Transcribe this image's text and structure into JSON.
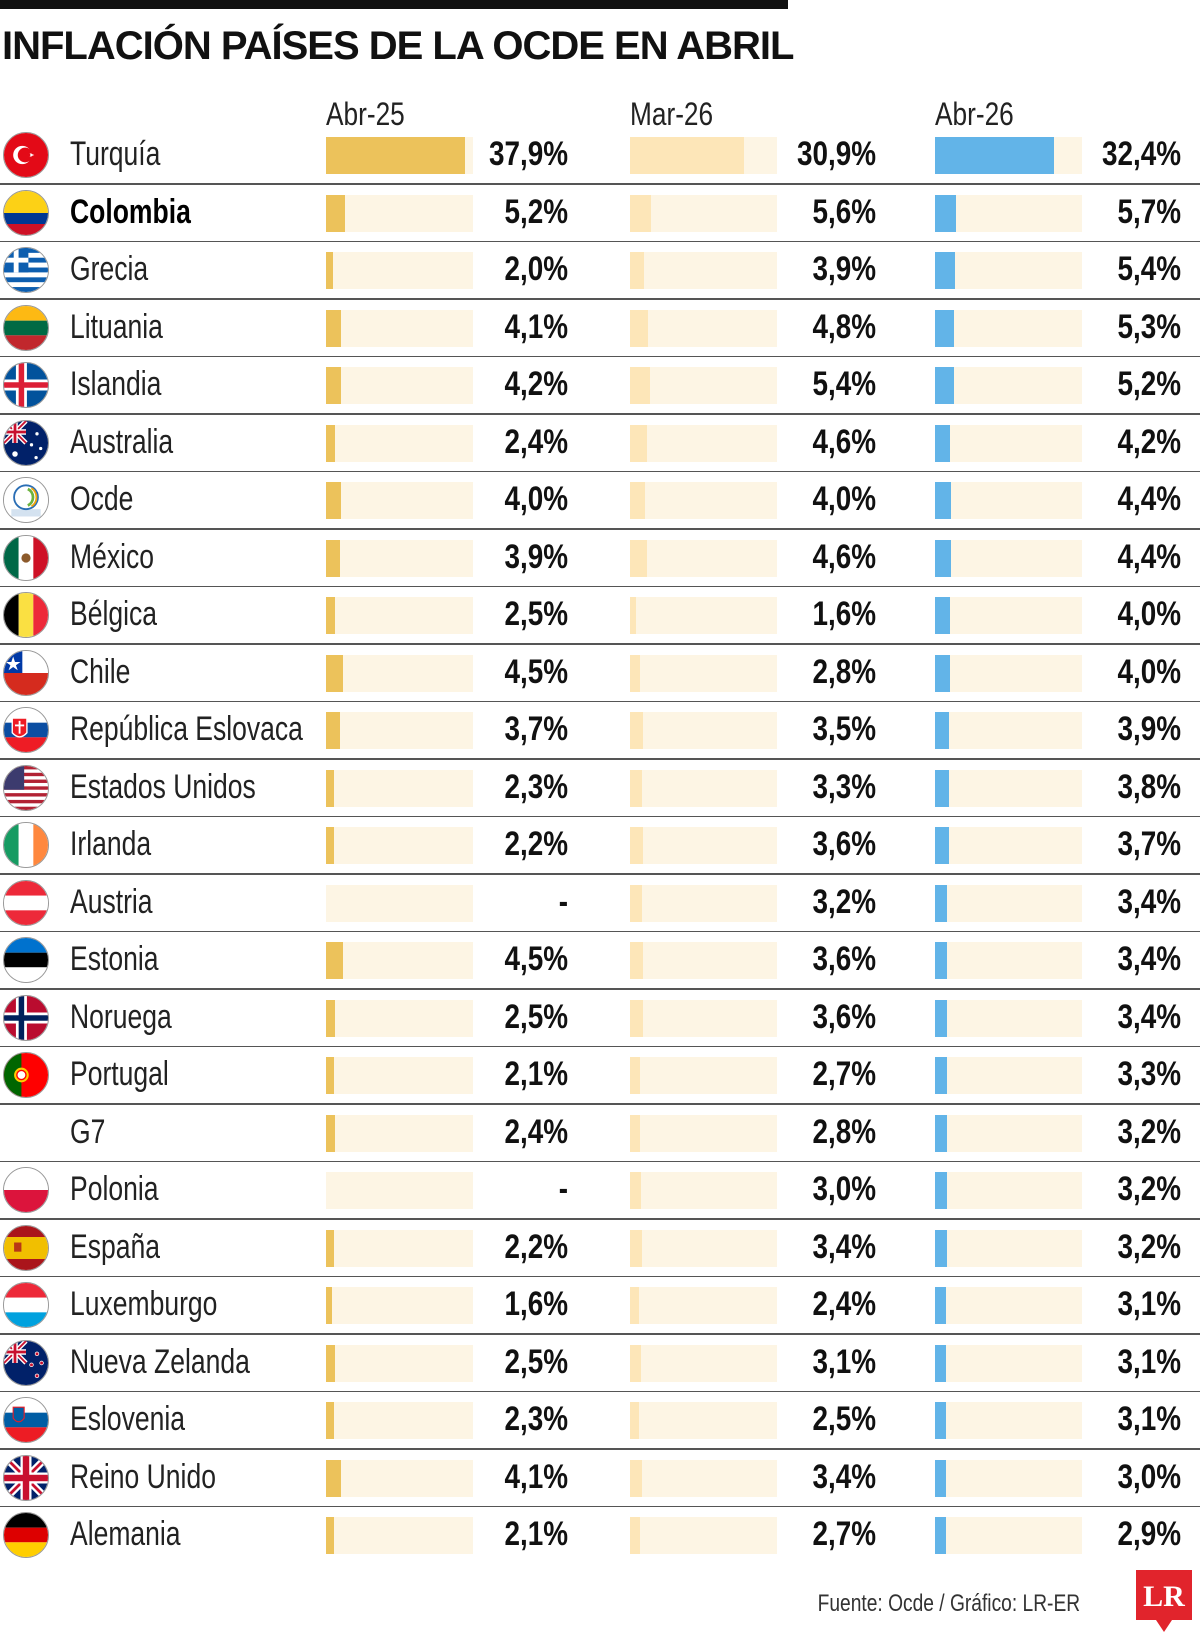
{
  "colors": {
    "apr25_fill": "#ecc25b",
    "mar26_fill": "#fde6b8",
    "apr26_fill": "#62b4e8",
    "track": "#fdf5e4",
    "logo": "#e1242c"
  },
  "chart_data": {
    "type": "bar",
    "title": "INFLACIÓN PAÍSES DE LA OCDE EN ABRIL",
    "columns": [
      "Abr-25",
      "Mar-26",
      "Abr-26"
    ],
    "source": "Fuente: Ocde / Gráfico: LR-ER",
    "logo_text": "LR",
    "scale_max": 40,
    "series": [
      {
        "name": "Abr-25",
        "values": [
          37.9,
          5.2,
          2.0,
          4.1,
          4.2,
          2.4,
          4.0,
          3.9,
          2.5,
          4.5,
          3.7,
          2.3,
          2.2,
          null,
          4.5,
          2.5,
          2.1,
          2.4,
          null,
          2.2,
          1.6,
          2.5,
          2.3,
          4.1,
          2.1
        ]
      },
      {
        "name": "Mar-26",
        "values": [
          30.9,
          5.6,
          3.9,
          4.8,
          5.4,
          4.6,
          4.0,
          4.6,
          1.6,
          2.8,
          3.5,
          3.3,
          3.6,
          3.2,
          3.6,
          3.6,
          2.7,
          2.8,
          3.0,
          3.4,
          2.4,
          3.1,
          2.5,
          3.4,
          2.7
        ]
      },
      {
        "name": "Abr-26",
        "values": [
          32.4,
          5.7,
          5.4,
          5.3,
          5.2,
          4.2,
          4.4,
          4.4,
          4.0,
          4.0,
          3.9,
          3.8,
          3.7,
          3.4,
          3.4,
          3.4,
          3.3,
          3.2,
          3.2,
          3.2,
          3.1,
          3.1,
          3.1,
          3.0,
          2.9
        ]
      }
    ],
    "rows": [
      {
        "country": "Turquía",
        "flag": "turkey-flag-icon",
        "labels": [
          "37,9%",
          "30,9%",
          "32,4%"
        ]
      },
      {
        "country": "Colombia",
        "flag": "colombia-flag-icon",
        "bold": true,
        "labels": [
          "5,2%",
          "5,6%",
          "5,7%"
        ]
      },
      {
        "country": "Grecia",
        "flag": "greece-flag-icon",
        "labels": [
          "2,0%",
          "3,9%",
          "5,4%"
        ]
      },
      {
        "country": "Lituania",
        "flag": "lithuania-flag-icon",
        "labels": [
          "4,1%",
          "4,8%",
          "5,3%"
        ]
      },
      {
        "country": "Islandia",
        "flag": "iceland-flag-icon",
        "labels": [
          "4,2%",
          "5,4%",
          "5,2%"
        ]
      },
      {
        "country": "Australia",
        "flag": "australia-flag-icon",
        "labels": [
          "2,4%",
          "4,6%",
          "4,2%"
        ]
      },
      {
        "country": "Ocde",
        "flag": "oecd-logo-icon",
        "labels": [
          "4,0%",
          "4,0%",
          "4,4%"
        ]
      },
      {
        "country": "México",
        "flag": "mexico-flag-icon",
        "labels": [
          "3,9%",
          "4,6%",
          "4,4%"
        ]
      },
      {
        "country": "Bélgica",
        "flag": "belgium-flag-icon",
        "labels": [
          "2,5%",
          "1,6%",
          "4,0%"
        ]
      },
      {
        "country": "Chile",
        "flag": "chile-flag-icon",
        "labels": [
          "4,5%",
          "2,8%",
          "4,0%"
        ]
      },
      {
        "country": "República Eslovaca",
        "flag": "slovakia-flag-icon",
        "labels": [
          "3,7%",
          "3,5%",
          "3,9%"
        ]
      },
      {
        "country": "Estados Unidos",
        "flag": "usa-flag-icon",
        "labels": [
          "2,3%",
          "3,3%",
          "3,8%"
        ]
      },
      {
        "country": "Irlanda",
        "flag": "ireland-flag-icon",
        "labels": [
          "2,2%",
          "3,6%",
          "3,7%"
        ]
      },
      {
        "country": "Austria",
        "flag": "austria-flag-icon",
        "labels": [
          "-",
          "3,2%",
          "3,4%"
        ]
      },
      {
        "country": "Estonia",
        "flag": "estonia-flag-icon",
        "labels": [
          "4,5%",
          "3,6%",
          "3,4%"
        ]
      },
      {
        "country": "Noruega",
        "flag": "norway-flag-icon",
        "labels": [
          "2,5%",
          "3,6%",
          "3,4%"
        ]
      },
      {
        "country": "Portugal",
        "flag": "portugal-flag-icon",
        "labels": [
          "2,1%",
          "2,7%",
          "3,3%"
        ]
      },
      {
        "country": "G7",
        "flag": "",
        "labels": [
          "2,4%",
          "2,8%",
          "3,2%"
        ]
      },
      {
        "country": "Polonia",
        "flag": "poland-flag-icon",
        "labels": [
          "-",
          "3,0%",
          "3,2%"
        ]
      },
      {
        "country": "España",
        "flag": "spain-flag-icon",
        "labels": [
          "2,2%",
          "3,4%",
          "3,2%"
        ]
      },
      {
        "country": "Luxemburgo",
        "flag": "luxembourg-flag-icon",
        "labels": [
          "1,6%",
          "2,4%",
          "3,1%"
        ]
      },
      {
        "country": "Nueva Zelanda",
        "flag": "new-zealand-flag-icon",
        "labels": [
          "2,5%",
          "3,1%",
          "3,1%"
        ]
      },
      {
        "country": "Eslovenia",
        "flag": "slovenia-flag-icon",
        "labels": [
          "2,3%",
          "2,5%",
          "3,1%"
        ]
      },
      {
        "country": "Reino Unido",
        "flag": "uk-flag-icon",
        "labels": [
          "4,1%",
          "3,4%",
          "3,0%"
        ]
      },
      {
        "country": "Alemania",
        "flag": "germany-flag-icon",
        "labels": [
          "2,1%",
          "2,7%",
          "2,9%"
        ]
      }
    ]
  }
}
